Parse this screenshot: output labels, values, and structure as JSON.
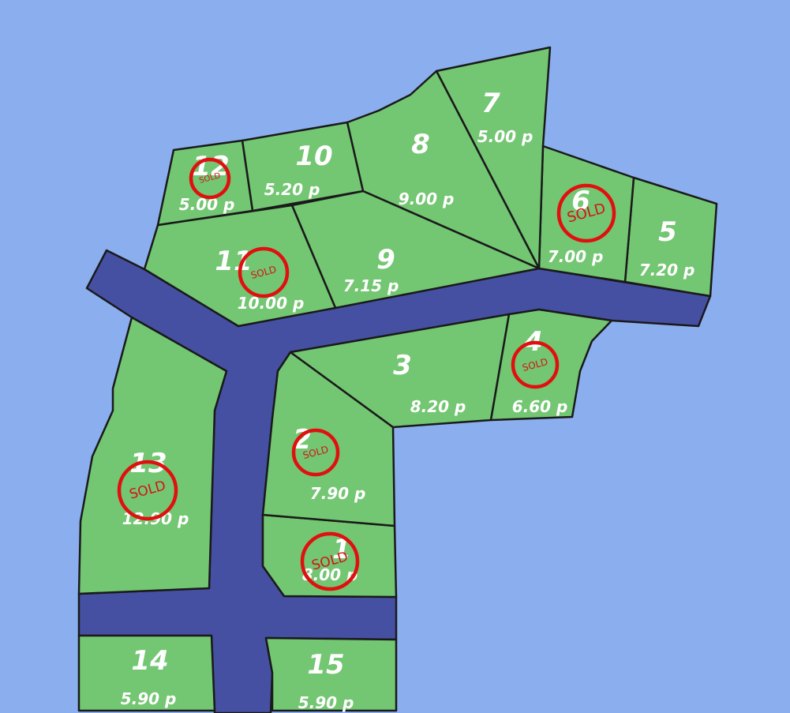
{
  "map": {
    "background_color": "#8aaeee",
    "plot_color": "#73c672",
    "road_color": "#4650a3",
    "sold_color": "#e01010",
    "sold_label": "SOLD",
    "plots": [
      {
        "number": "1",
        "price": "8.00 p",
        "sold": true
      },
      {
        "number": "2",
        "price": "7.90 p",
        "sold": true
      },
      {
        "number": "3",
        "price": "8.20 p",
        "sold": false
      },
      {
        "number": "4",
        "price": "6.60 p",
        "sold": true
      },
      {
        "number": "5",
        "price": "7.20 p",
        "sold": false
      },
      {
        "number": "6",
        "price": "7.00 p",
        "sold": true
      },
      {
        "number": "7",
        "price": "5.00 p",
        "sold": false
      },
      {
        "number": "8",
        "price": "9.00 p",
        "sold": false
      },
      {
        "number": "9",
        "price": "7.15 p",
        "sold": false
      },
      {
        "number": "10",
        "price": "5.20 p",
        "sold": false
      },
      {
        "number": "11",
        "price": "10.00 p",
        "sold": true
      },
      {
        "number": "12",
        "price": "5.00 p",
        "sold": true
      },
      {
        "number": "13",
        "price": "12.90 p",
        "sold": true
      },
      {
        "number": "14",
        "price": "5.90 p",
        "sold": false
      },
      {
        "number": "15",
        "price": "5.90 p",
        "sold": false
      }
    ]
  }
}
